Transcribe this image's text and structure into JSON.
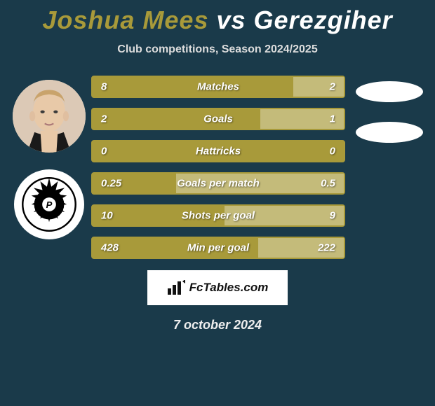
{
  "title": {
    "player1": "Joshua Mees",
    "vs": "vs",
    "player2": "Gerezgiher"
  },
  "subtitle": "Club competitions, Season 2024/2025",
  "colors": {
    "player1": "#a89a3a",
    "player2": "#ffffff",
    "row_border": "#a89a3a",
    "fill1": "#a89a3a",
    "fill2": "#c4bb7a",
    "background": "#1a3a4a"
  },
  "stats": [
    {
      "label": "Matches",
      "v1": "8",
      "v2": "2",
      "n1": 8,
      "n2": 2
    },
    {
      "label": "Goals",
      "v1": "2",
      "v2": "1",
      "n1": 2,
      "n2": 1
    },
    {
      "label": "Hattricks",
      "v1": "0",
      "v2": "0",
      "n1": 0,
      "n2": 0
    },
    {
      "label": "Goals per match",
      "v1": "0.25",
      "v2": "0.5",
      "n1": 0.25,
      "n2": 0.5
    },
    {
      "label": "Shots per goal",
      "v1": "10",
      "v2": "9",
      "n1": 10,
      "n2": 9
    },
    {
      "label": "Min per goal",
      "v1": "428",
      "v2": "222",
      "n1": 428,
      "n2": 222
    }
  ],
  "footer": {
    "brand": "FcTables.com",
    "date": "7 october 2024"
  }
}
